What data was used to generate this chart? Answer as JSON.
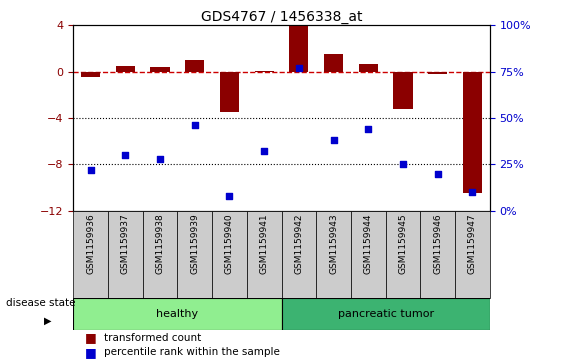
{
  "title": "GDS4767 / 1456338_at",
  "samples": [
    "GSM1159936",
    "GSM1159937",
    "GSM1159938",
    "GSM1159939",
    "GSM1159940",
    "GSM1159941",
    "GSM1159942",
    "GSM1159943",
    "GSM1159944",
    "GSM1159945",
    "GSM1159946",
    "GSM1159947"
  ],
  "transformed_count": [
    -0.5,
    0.5,
    0.4,
    1.0,
    -3.5,
    0.1,
    4.0,
    1.5,
    0.7,
    -3.2,
    -0.2,
    -10.5
  ],
  "percentile_rank": [
    22,
    30,
    28,
    46,
    8,
    32,
    77,
    38,
    44,
    25,
    20,
    10
  ],
  "bar_color": "#8B0000",
  "dot_color": "#0000CD",
  "dashed_line_color": "#CC0000",
  "left_ylim": [
    -12,
    4
  ],
  "left_yticks": [
    -12,
    -8,
    -4,
    0,
    4
  ],
  "right_ylim": [
    0,
    100
  ],
  "right_yticks": [
    0,
    25,
    50,
    75,
    100
  ],
  "right_yticklabels": [
    "0%",
    "25%",
    "50%",
    "75%",
    "100%"
  ],
  "healthy_samples": 6,
  "healthy_color": "#90EE90",
  "tumor_color": "#3CB371",
  "healthy_label": "healthy",
  "tumor_label": "pancreatic tumor",
  "disease_state_label": "disease state",
  "legend_bar_label": "transformed count",
  "legend_dot_label": "percentile rank within the sample",
  "background_color": "#ffffff",
  "tick_label_color_left": "#8B0000",
  "tick_label_color_right": "#0000CD",
  "gray_box_color": "#cccccc"
}
